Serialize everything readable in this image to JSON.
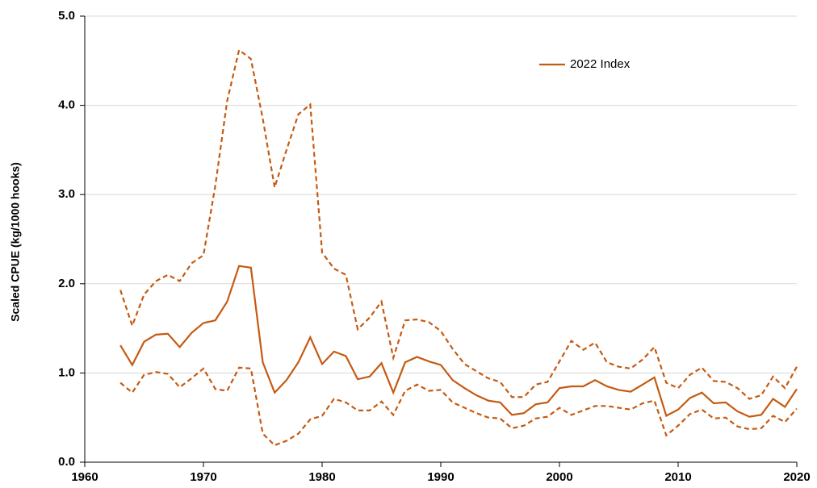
{
  "chart_data": {
    "type": "line",
    "ylabel": "Scaled CPUE (kg/1000 hooks)",
    "x": [
      1963,
      1964,
      1965,
      1966,
      1967,
      1968,
      1969,
      1970,
      1971,
      1972,
      1973,
      1974,
      1975,
      1976,
      1977,
      1978,
      1979,
      1980,
      1981,
      1982,
      1983,
      1984,
      1985,
      1986,
      1987,
      1988,
      1989,
      1990,
      1991,
      1992,
      1993,
      1994,
      1995,
      1996,
      1997,
      1998,
      1999,
      2000,
      2001,
      2002,
      2003,
      2004,
      2005,
      2006,
      2007,
      2008,
      2009,
      2010,
      2011,
      2012,
      2013,
      2014,
      2015,
      2016,
      2017,
      2018,
      2019,
      2020
    ],
    "series": [
      {
        "name": "2022 Index",
        "color": "#c55a11",
        "style": "solid",
        "values": [
          1.31,
          1.09,
          1.35,
          1.43,
          1.44,
          1.29,
          1.45,
          1.56,
          1.59,
          1.8,
          2.2,
          2.18,
          1.12,
          0.78,
          0.92,
          1.12,
          1.4,
          1.1,
          1.24,
          1.19,
          0.93,
          0.96,
          1.11,
          0.78,
          1.12,
          1.18,
          1.13,
          1.09,
          0.92,
          0.83,
          0.75,
          0.69,
          0.67,
          0.53,
          0.55,
          0.65,
          0.67,
          0.83,
          0.85,
          0.85,
          0.92,
          0.85,
          0.81,
          0.79,
          0.87,
          0.95,
          0.52,
          0.59,
          0.72,
          0.78,
          0.66,
          0.67,
          0.57,
          0.51,
          0.53,
          0.71,
          0.62,
          0.82
        ]
      },
      {
        "color": "#c55a11",
        "style": "dashed",
        "values": [
          1.93,
          1.53,
          1.88,
          2.03,
          2.1,
          2.03,
          2.23,
          2.32,
          3.1,
          4.05,
          4.62,
          4.52,
          3.85,
          3.08,
          3.5,
          3.9,
          4.01,
          2.35,
          2.17,
          2.1,
          1.49,
          1.62,
          1.8,
          1.17,
          1.59,
          1.6,
          1.57,
          1.47,
          1.27,
          1.1,
          1.02,
          0.94,
          0.9,
          0.73,
          0.73,
          0.87,
          0.9,
          1.13,
          1.36,
          1.26,
          1.34,
          1.12,
          1.07,
          1.05,
          1.15,
          1.29,
          0.89,
          0.83,
          0.98,
          1.06,
          0.91,
          0.9,
          0.83,
          0.71,
          0.75,
          0.96,
          0.83,
          1.07
        ]
      },
      {
        "color": "#c55a11",
        "style": "dashed",
        "values": [
          0.89,
          0.78,
          0.98,
          1.01,
          0.99,
          0.84,
          0.94,
          1.05,
          0.82,
          0.8,
          1.06,
          1.05,
          0.32,
          0.19,
          0.24,
          0.32,
          0.48,
          0.52,
          0.71,
          0.67,
          0.58,
          0.58,
          0.68,
          0.53,
          0.8,
          0.87,
          0.8,
          0.81,
          0.67,
          0.61,
          0.55,
          0.5,
          0.49,
          0.38,
          0.41,
          0.49,
          0.51,
          0.61,
          0.53,
          0.58,
          0.63,
          0.63,
          0.61,
          0.59,
          0.66,
          0.69,
          0.3,
          0.41,
          0.54,
          0.59,
          0.49,
          0.5,
          0.4,
          0.37,
          0.38,
          0.52,
          0.45,
          0.6
        ]
      }
    ],
    "xlim": [
      1960,
      2020
    ],
    "xticks": [
      1960,
      1970,
      1980,
      1990,
      2000,
      2010,
      2020
    ],
    "ylim": [
      0,
      5
    ],
    "yticks": [
      {
        "value": 0,
        "label": "0.0"
      },
      {
        "value": 1,
        "label": "1.0"
      },
      {
        "value": 2,
        "label": "2.0"
      },
      {
        "value": 3,
        "label": "3.0"
      },
      {
        "value": 4,
        "label": "4.0"
      },
      {
        "value": 5,
        "label": "5.0"
      }
    ],
    "grid": true
  }
}
